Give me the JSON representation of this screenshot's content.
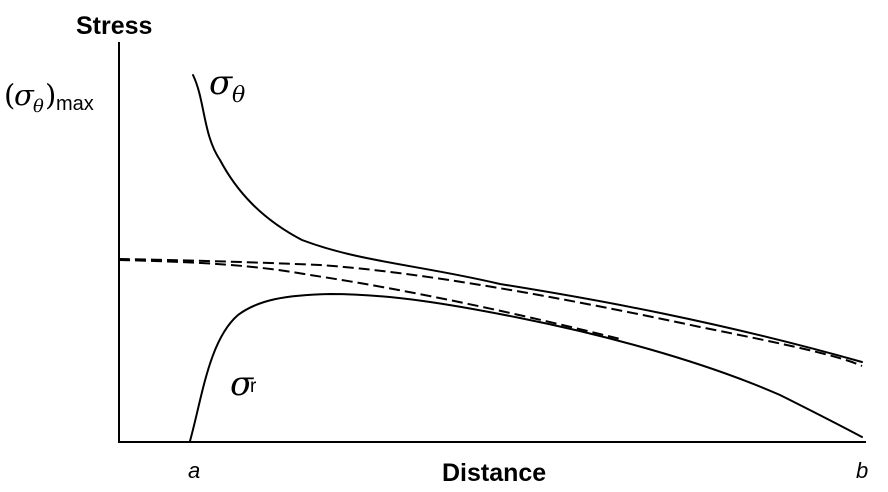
{
  "diagram": {
    "y_axis_title": "Stress",
    "x_axis_title": "Distance",
    "max_label_symbol": "σ",
    "max_label_subscript": "θ",
    "max_label_suffix": "max",
    "curve_theta_symbol": "σ",
    "curve_theta_subscript": "θ",
    "curve_r_symbol": "σ",
    "curve_r_subscript": "r",
    "x_start_label": "a",
    "x_end_label": "b"
  }
}
